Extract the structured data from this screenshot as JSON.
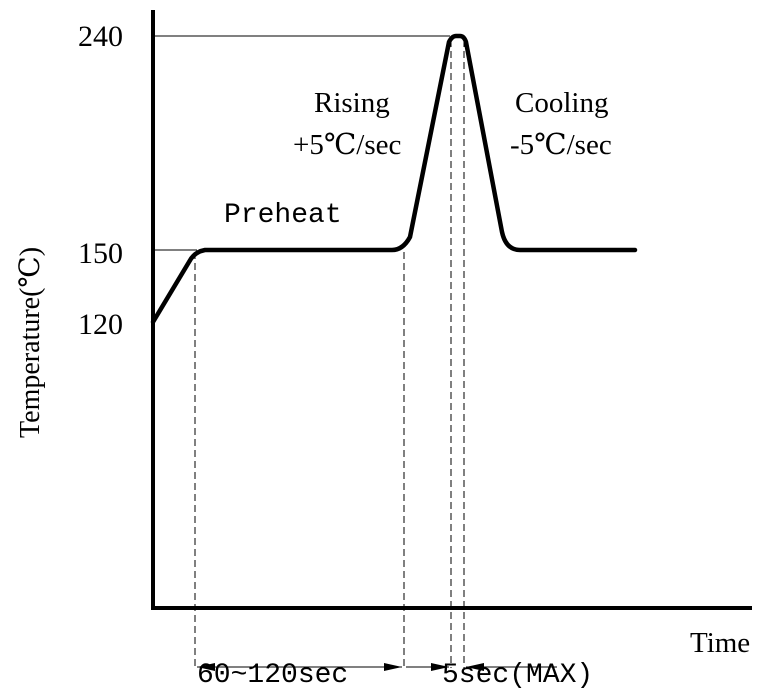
{
  "chart_data": {
    "type": "line",
    "title": "",
    "xlabel": "Time",
    "ylabel": "Temperature(℃)",
    "y_ticks": [
      {
        "value": 240,
        "label": "240"
      },
      {
        "value": 150,
        "label": "150"
      },
      {
        "value": 120,
        "label": "120"
      }
    ],
    "annotations": {
      "preheat": "Preheat",
      "rising_title": "Rising",
      "rising_rate": "+5℃/sec",
      "cooling_title": "Cooling",
      "cooling_rate": "-5℃/sec",
      "preheat_duration": "60~120sec",
      "peak_duration": "5sec(MAX)"
    }
  }
}
